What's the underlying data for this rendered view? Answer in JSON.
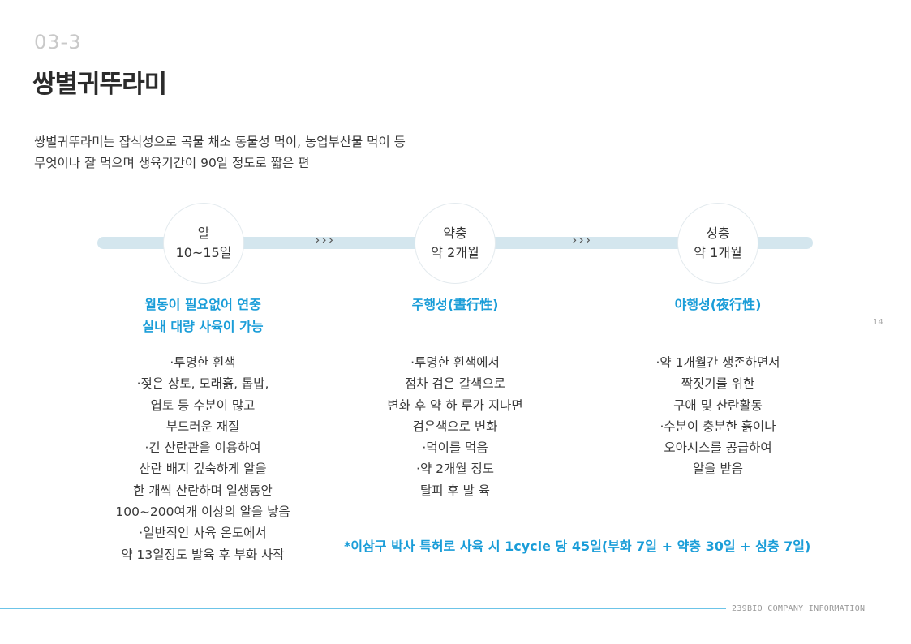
{
  "header": {
    "section_number": "03-3",
    "title": "쌍별귀뚜라미"
  },
  "intro": {
    "line1": "쌍별귀뚜라미는 잡식성으로 곡물 채소 동물성 먹이, 농업부산물 먹이 등",
    "line2": "무엇이나 잘 먹으며 생육기간이 90일 정도로 짧은 편"
  },
  "timeline": {
    "arrow_glyph": "›››",
    "stages": [
      {
        "name": "알",
        "duration": "10~15일"
      },
      {
        "name": "약충",
        "duration": "약 2개월"
      },
      {
        "name": "성충",
        "duration": "약 1개월"
      }
    ]
  },
  "columns": [
    {
      "heading": [
        "월동이 필요없어 연중",
        "실내 대량 사육이 가능"
      ],
      "lines": [
        "·투명한 흰색",
        "·젖은 상토, 모래흙, 톱밥,",
        "엽토 등 수분이 많고",
        "부드러운 재질",
        "·긴 산란관을 이용하여",
        "산란 배지 깊숙하게 알을",
        "한 개씩 산란하며 일생동안",
        "100~200여개 이상의 알을 낳음",
        "·일반적인 사육 온도에서",
        "약 13일정도 발육 후 부화 사작"
      ]
    },
    {
      "heading": [
        "주행성(晝行性)"
      ],
      "lines": [
        "·투명한 흰색에서",
        "점차 검은 갈색으로",
        "변화 후 약 하 루가 지나면",
        "검은색으로 변화",
        "·먹이를 먹음",
        "·약 2개월 정도",
        "탈피 후 발 육"
      ]
    },
    {
      "heading": [
        "야행성(夜行性)"
      ],
      "lines": [
        "·약 1개월간 생존하면서",
        "짝짓기를 위한",
        "구애 및 산란활동",
        "·수분이 충분한 흙이나",
        "오아시스를 공급하여",
        "알을 받음"
      ]
    }
  ],
  "footnote": "*이삼구 박사 특허로 사육 시 1cycle 당 45일(부화 7일 + 약충 30일 + 성충 7일)",
  "page_number": "14",
  "footer": {
    "brand": "239BIO COMPANY INFORMATION"
  },
  "colors": {
    "accent": "#1a9dd8",
    "timeline_bar": "#d4e6ee",
    "footer_line": "#6cc4e8"
  }
}
